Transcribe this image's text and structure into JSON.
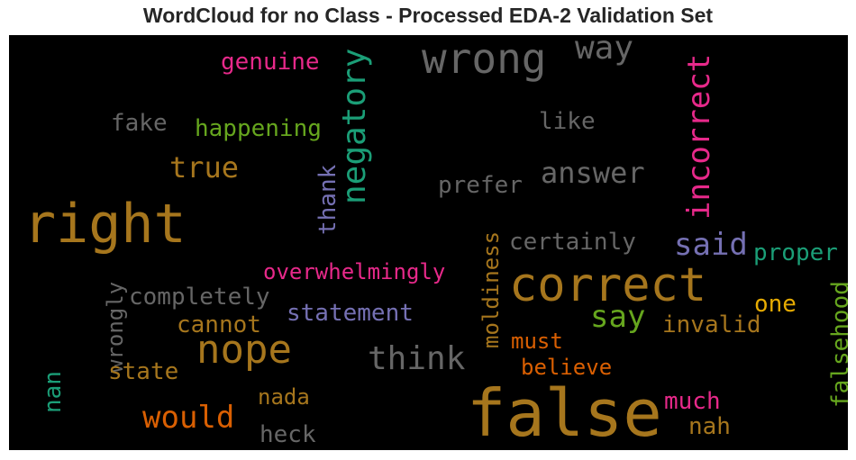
{
  "title": "WordCloud for no Class - Processed EDA-2 Validation Set",
  "chart_data": {
    "type": "wordcloud",
    "title": "WordCloud for no Class - Processed EDA-2 Validation Set",
    "background": "#000000",
    "words": [
      {
        "text": "false",
        "color": "#a6761d"
      },
      {
        "text": "right",
        "color": "#a6761d"
      },
      {
        "text": "correct",
        "color": "#a6761d"
      },
      {
        "text": "wrong",
        "color": "#666666"
      },
      {
        "text": "nope",
        "color": "#a6761d"
      },
      {
        "text": "negatory",
        "color": "#1b9e77"
      },
      {
        "text": "incorrect",
        "color": "#e7298a"
      },
      {
        "text": "way",
        "color": "#666666"
      },
      {
        "text": "think",
        "color": "#666666"
      },
      {
        "text": "answer",
        "color": "#666666"
      },
      {
        "text": "true",
        "color": "#a6761d"
      },
      {
        "text": "would",
        "color": "#d95f02"
      },
      {
        "text": "said",
        "color": "#7570b3"
      },
      {
        "text": "say",
        "color": "#66a61e"
      },
      {
        "text": "genuine",
        "color": "#e7298a"
      },
      {
        "text": "happening",
        "color": "#66a61e"
      },
      {
        "text": "fake",
        "color": "#666666"
      },
      {
        "text": "like",
        "color": "#666666"
      },
      {
        "text": "thank",
        "color": "#7570b3"
      },
      {
        "text": "prefer",
        "color": "#666666"
      },
      {
        "text": "moldiness",
        "color": "#a6761d"
      },
      {
        "text": "certainly",
        "color": "#666666"
      },
      {
        "text": "proper",
        "color": "#1b9e77"
      },
      {
        "text": "overwhelmingly",
        "color": "#e7298a"
      },
      {
        "text": "wrongly",
        "color": "#666666"
      },
      {
        "text": "completely",
        "color": "#666666"
      },
      {
        "text": "statement",
        "color": "#7570b3"
      },
      {
        "text": "cannot",
        "color": "#a6761d"
      },
      {
        "text": "one",
        "color": "#e6ab02"
      },
      {
        "text": "falsehood",
        "color": "#66a61e"
      },
      {
        "text": "invalid",
        "color": "#a6761d"
      },
      {
        "text": "must",
        "color": "#d95f02"
      },
      {
        "text": "state",
        "color": "#a6761d"
      },
      {
        "text": "believe",
        "color": "#d95f02"
      },
      {
        "text": "nan",
        "color": "#1b9e77"
      },
      {
        "text": "nada",
        "color": "#a6761d"
      },
      {
        "text": "much",
        "color": "#e7298a"
      },
      {
        "text": "nah",
        "color": "#a6761d"
      },
      {
        "text": "heck",
        "color": "#666666"
      }
    ]
  }
}
